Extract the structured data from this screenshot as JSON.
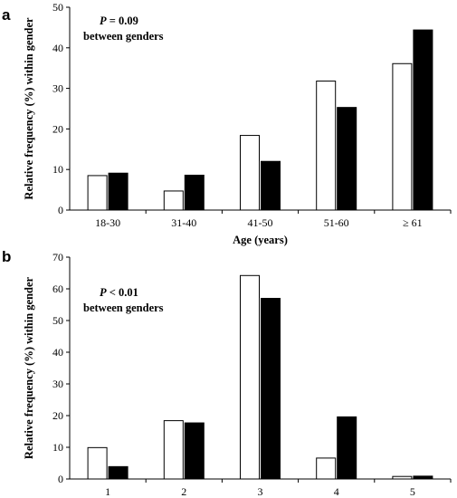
{
  "chart_data": [
    {
      "type": "bar",
      "panel_label": "a",
      "categories": [
        "18-30",
        "31-40",
        "41-50",
        "51-60",
        "≥ 61"
      ],
      "series": [
        {
          "values": [
            8.5,
            4.7,
            18.4,
            31.8,
            36.1
          ],
          "color": "#ffffff"
        },
        {
          "values": [
            9.1,
            8.6,
            12.0,
            25.3,
            44.4
          ],
          "color": "#000000"
        }
      ],
      "ylabel": "Relative frequency (%) within gender",
      "xlabel": "Age (years)",
      "ylim": [
        0,
        50
      ],
      "yticks": [
        0,
        10,
        20,
        30,
        40,
        50
      ],
      "annotation_p": "P",
      "annotation_value": " = 0.09",
      "annotation_line2": "between genders",
      "grid": false
    },
    {
      "type": "bar",
      "panel_label": "b",
      "categories": [
        "1",
        "2",
        "3",
        "4",
        "5"
      ],
      "series": [
        {
          "values": [
            9.9,
            18.4,
            64.2,
            6.6,
            0.8
          ],
          "color": "#ffffff"
        },
        {
          "values": [
            3.9,
            17.7,
            57.0,
            19.6,
            0.9
          ],
          "color": "#000000"
        }
      ],
      "ylabel": "Relative frequency (%) within gender",
      "xlabel": "",
      "ylim": [
        0,
        70
      ],
      "yticks": [
        0,
        10,
        20,
        30,
        40,
        50,
        60,
        70
      ],
      "annotation_p": "P",
      "annotation_value": " < 0.01",
      "annotation_line2": "between genders",
      "grid": false
    }
  ]
}
